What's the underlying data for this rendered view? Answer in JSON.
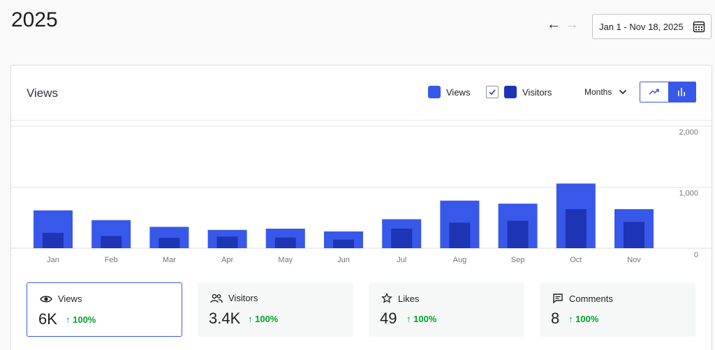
{
  "header": {
    "title": "2025",
    "prev_arrow": "←",
    "next_arrow": "→",
    "date_range": "Jan 1 - Nov 18, 2025"
  },
  "card": {
    "title": "Views",
    "legend": [
      {
        "label": "Views",
        "color": "#3858e9"
      },
      {
        "label": "Visitors",
        "color": "#1d35b4",
        "checked": true
      }
    ],
    "period": "Months",
    "chart_type_options": [
      "line",
      "bar"
    ],
    "chart_type_selected": "bar"
  },
  "chart_data": {
    "type": "bar",
    "categories": [
      "Jan",
      "Feb",
      "Mar",
      "Apr",
      "May",
      "Jun",
      "Jul",
      "Aug",
      "Sep",
      "Oct",
      "Nov"
    ],
    "series": [
      {
        "name": "Views",
        "color": "#3858e9",
        "values": [
          620,
          460,
          350,
          300,
          320,
          275,
          475,
          780,
          730,
          1060,
          640
        ]
      },
      {
        "name": "Visitors",
        "color": "#1d35b4",
        "values": [
          250,
          200,
          170,
          190,
          175,
          140,
          320,
          420,
          450,
          640,
          430
        ]
      }
    ],
    "ylim": [
      0,
      2000
    ],
    "yticks": [
      "2,000",
      "1,000",
      "0"
    ],
    "grid": true
  },
  "stats": [
    {
      "label": "Views",
      "icon": "eye-icon",
      "value": "6K",
      "change": "↑ 100%",
      "active": true
    },
    {
      "label": "Visitors",
      "icon": "people-icon",
      "value": "3.4K",
      "change": "↑ 100%",
      "active": false
    },
    {
      "label": "Likes",
      "icon": "star-icon",
      "value": "49",
      "change": "↑ 100%",
      "active": false
    },
    {
      "label": "Comments",
      "icon": "comment-icon",
      "value": "8",
      "change": "↑ 100%",
      "active": false
    }
  ]
}
